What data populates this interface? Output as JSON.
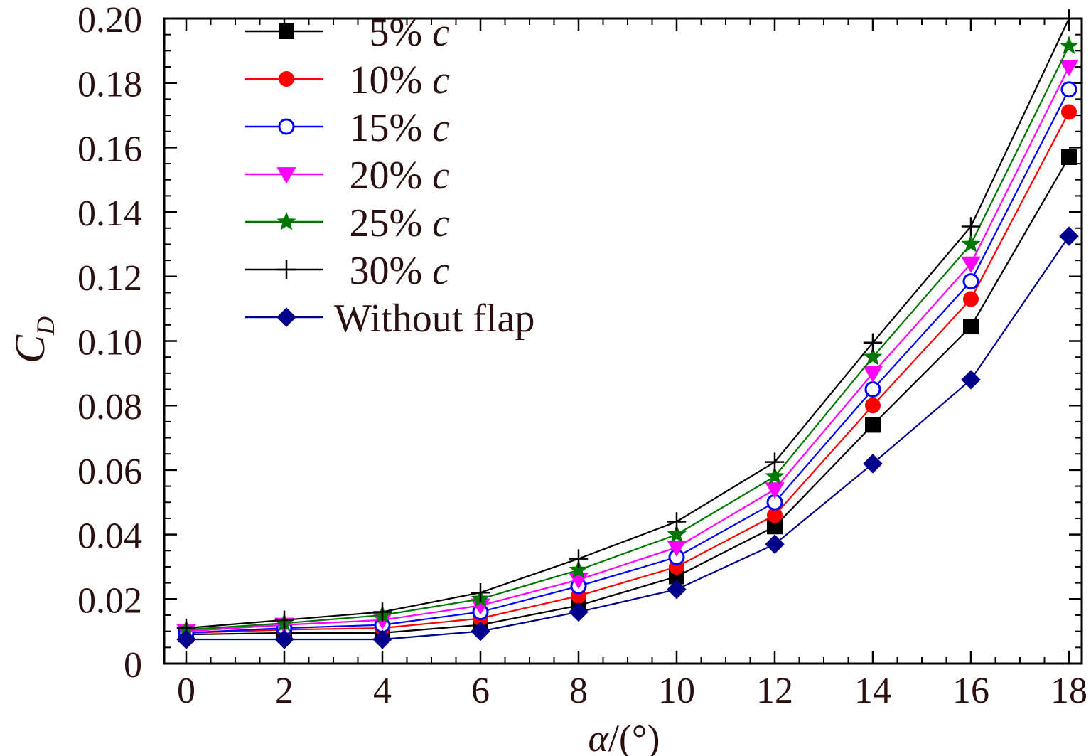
{
  "chart_data": {
    "type": "line",
    "title": "",
    "xlabel_symbol": "α",
    "xlabel_unit": "/(°)",
    "ylabel_symbol": "C",
    "ylabel_subscript": "D",
    "xlim": [
      0,
      18
    ],
    "ylim": [
      0,
      0.2
    ],
    "xticks": [
      0,
      2,
      4,
      6,
      8,
      10,
      12,
      14,
      16,
      18
    ],
    "xtick_labels": [
      "0",
      "2",
      "4",
      "6",
      "8",
      "10",
      "12",
      "14",
      "16",
      "18"
    ],
    "yticks": [
      0,
      0.02,
      0.04,
      0.06,
      0.08,
      0.1,
      0.12,
      0.14,
      0.16,
      0.18,
      0.2
    ],
    "ytick_labels": [
      "0",
      "0.02",
      "0.04",
      "0.06",
      "0.08",
      "0.10",
      "0.12",
      "0.14",
      "0.16",
      "0.18",
      "0.20"
    ],
    "grid": false,
    "legend_position": "top-left",
    "x": [
      0,
      2,
      4,
      6,
      8,
      10,
      12,
      14,
      16,
      18
    ],
    "series": [
      {
        "name": "5%",
        "name_italic": "c",
        "color": "#000000",
        "marker": "square",
        "values": [
          0.009,
          0.0095,
          0.0095,
          0.012,
          0.018,
          0.027,
          0.0425,
          0.074,
          0.1045,
          0.157
        ]
      },
      {
        "name": "10%",
        "name_italic": "c",
        "color": "#ff0000",
        "marker": "circle",
        "values": [
          0.0095,
          0.0105,
          0.011,
          0.014,
          0.021,
          0.03,
          0.046,
          0.08,
          0.113,
          0.171
        ]
      },
      {
        "name": "15%",
        "name_italic": "c",
        "color": "#0000ff",
        "marker": "circle-open",
        "values": [
          0.0095,
          0.011,
          0.012,
          0.016,
          0.024,
          0.033,
          0.05,
          0.085,
          0.1185,
          0.178
        ]
      },
      {
        "name": "20%",
        "name_italic": "c",
        "color": "#ff00ff",
        "marker": "triangle-down",
        "values": [
          0.01,
          0.012,
          0.0135,
          0.018,
          0.026,
          0.036,
          0.054,
          0.09,
          0.124,
          0.185
        ]
      },
      {
        "name": "25%",
        "name_italic": "c",
        "color": "#007700",
        "marker": "star",
        "values": [
          0.0105,
          0.0125,
          0.015,
          0.02,
          0.029,
          0.04,
          0.058,
          0.095,
          0.13,
          0.1915
        ]
      },
      {
        "name": "30%",
        "name_italic": "c",
        "color": "#000000",
        "marker": "plus",
        "values": [
          0.011,
          0.0135,
          0.016,
          0.022,
          0.0325,
          0.044,
          0.0625,
          0.0995,
          0.1355,
          0.2
        ]
      },
      {
        "name": "Without flap",
        "name_italic": "",
        "color": "#00008b",
        "marker": "diamond",
        "values": [
          0.0075,
          0.0075,
          0.0075,
          0.01,
          0.016,
          0.023,
          0.037,
          0.062,
          0.088,
          0.1325
        ]
      }
    ]
  }
}
